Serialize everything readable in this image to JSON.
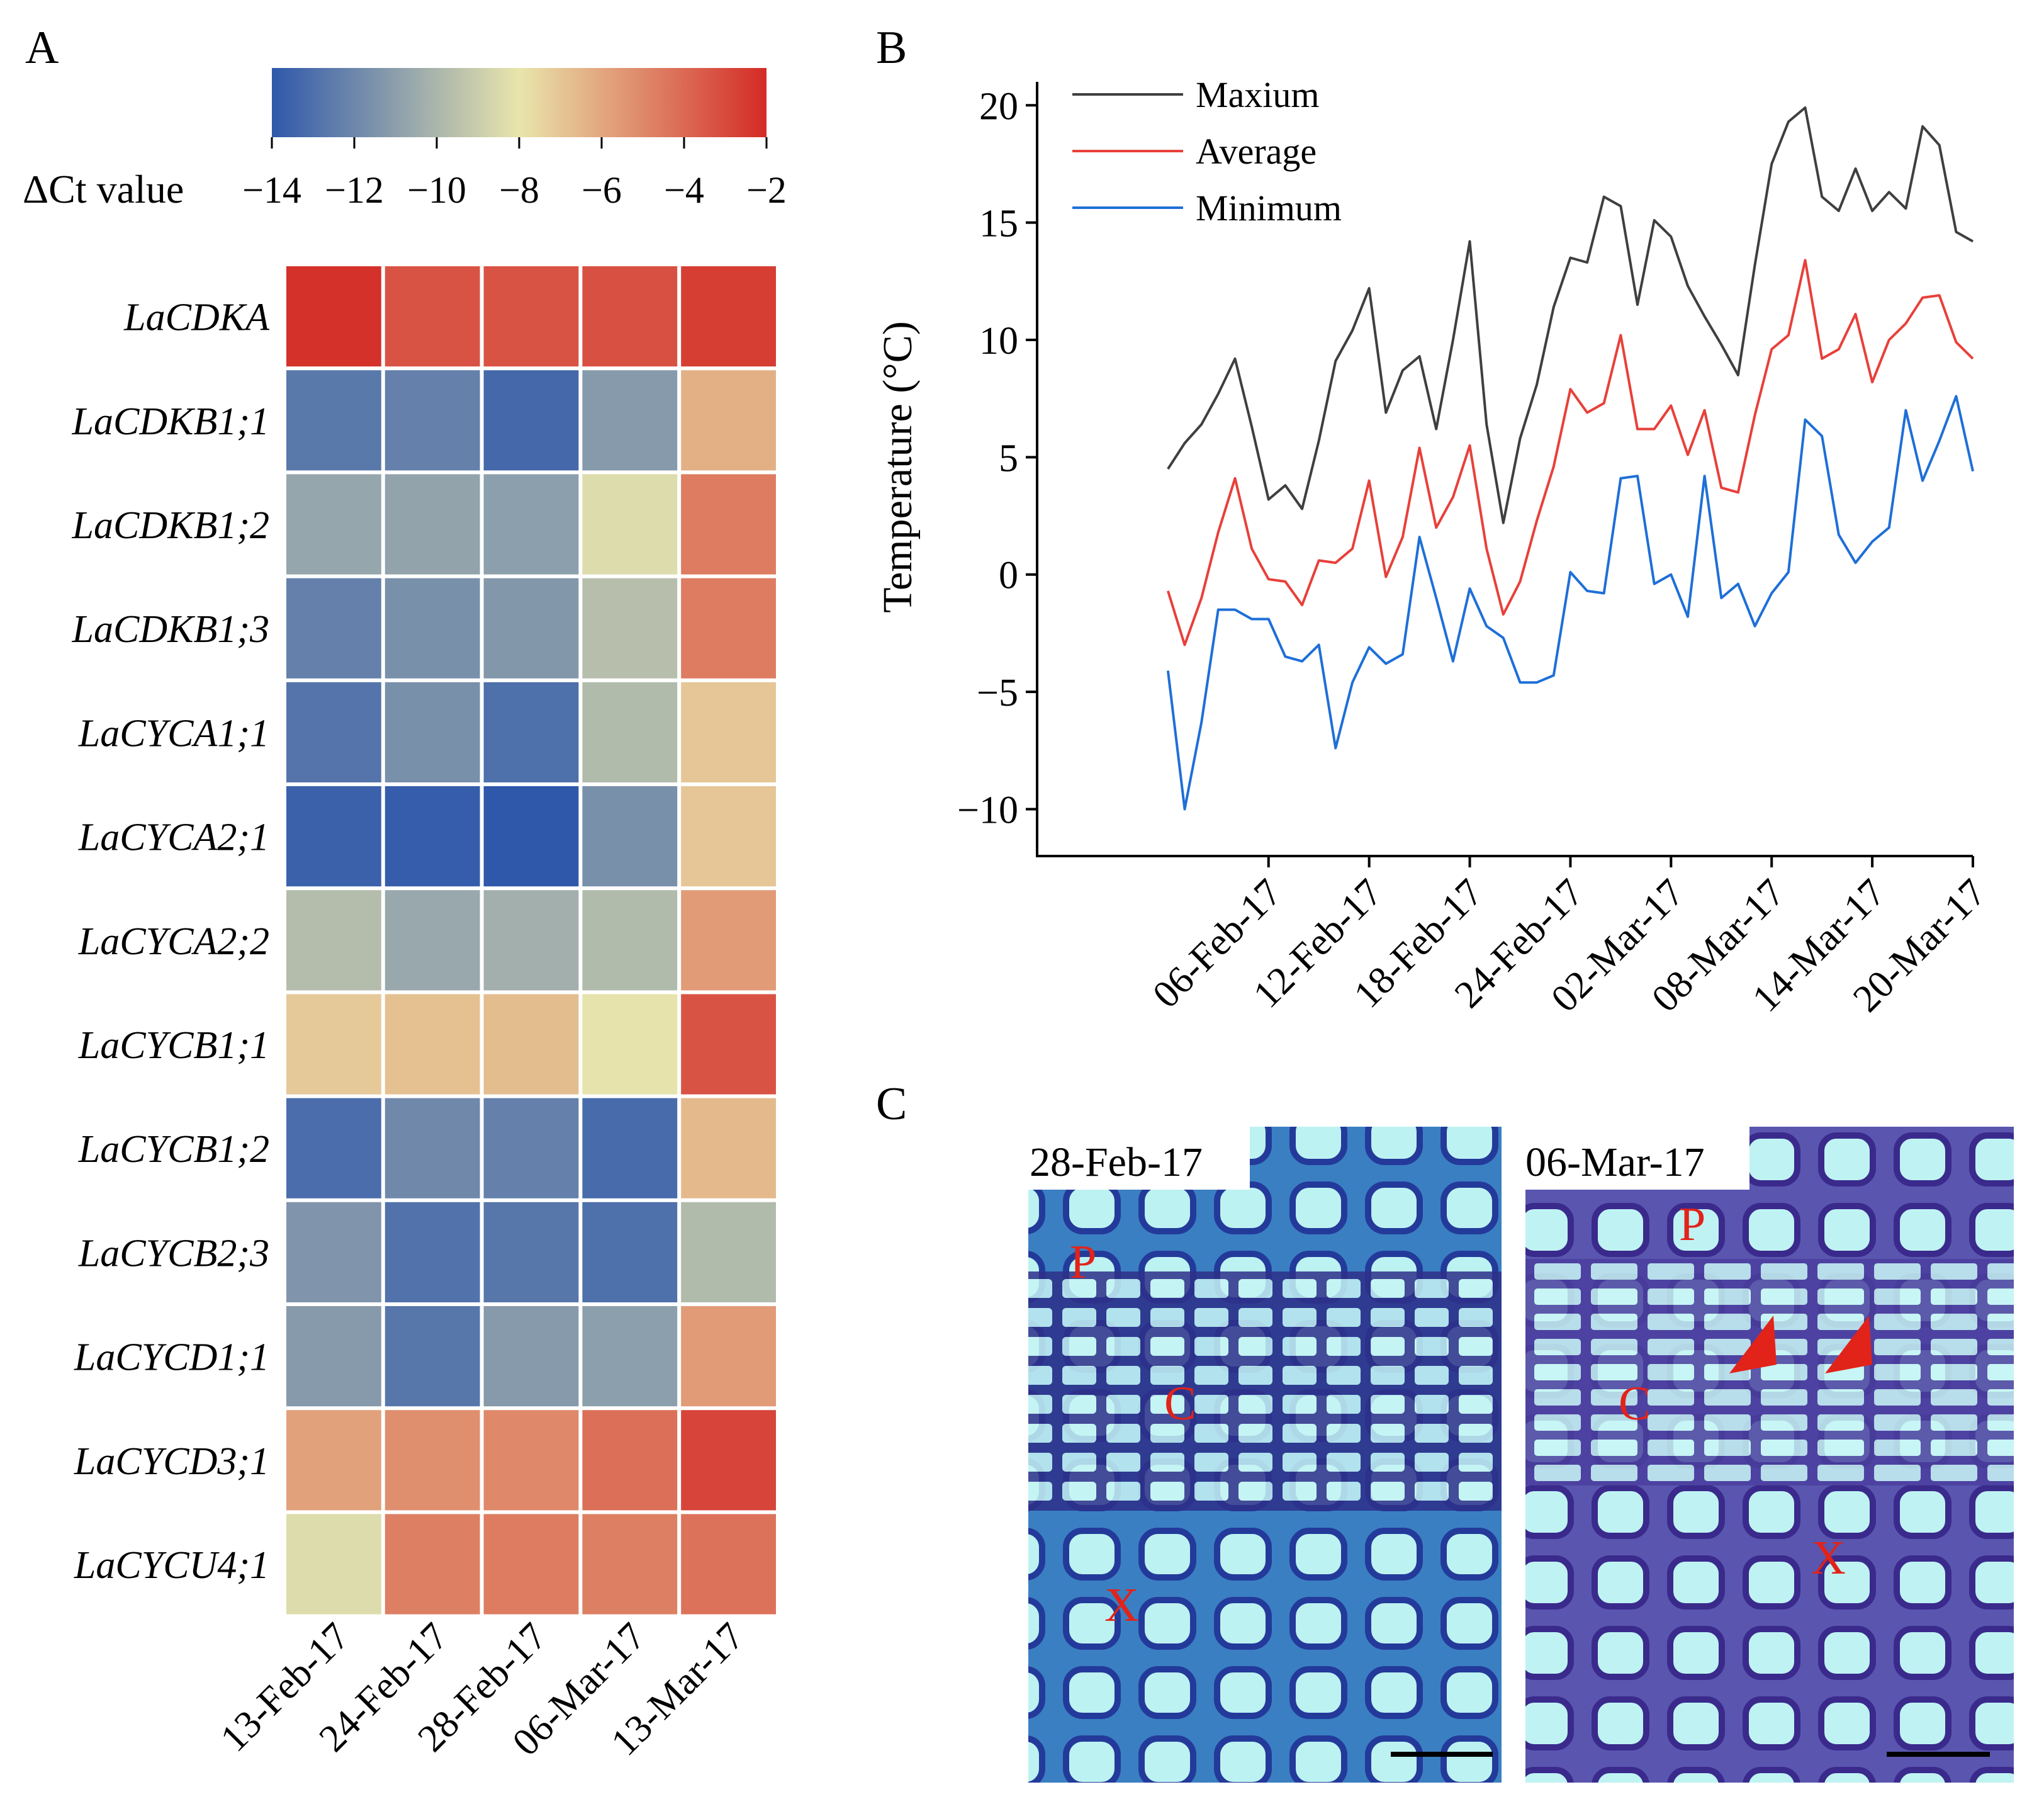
{
  "chart_data": [
    {
      "type": "heatmap",
      "panel_label": "A",
      "colorbar": {
        "title": "ΔCt value",
        "ticks": [
          "−14",
          "−12",
          "−10",
          "−8",
          "−6",
          "−4",
          "−2"
        ],
        "range": [
          -14,
          -2
        ],
        "colors": [
          "#2f58ab",
          "#e9e5ac",
          "#d42b27"
        ]
      },
      "rows": [
        "LaCDKA",
        "LaCDKB1;1",
        "LaCDKB1;2",
        "LaCDKB1;3",
        "LaCYCA1;1",
        "LaCYCA2;1",
        "LaCYCA2;2",
        "LaCYCB1;1",
        "LaCYCB1;2",
        "LaCYCB2;3",
        "LaCYCD1;1",
        "LaCYCD3;1",
        "LaCYCU4;1"
      ],
      "columns": [
        "13-Feb-17",
        "24-Feb-17",
        "28-Feb-17",
        "06-Mar-17",
        "13-Mar-17"
      ],
      "values": [
        [
          -2.2,
          -3.3,
          -3.3,
          -3.2,
          -2.6
        ],
        [
          -12.6,
          -12.3,
          -13.3,
          -11.2,
          -6.3
        ],
        [
          -10.7,
          -10.8,
          -11.0,
          -8.4,
          -4.6
        ],
        [
          -12.3,
          -11.6,
          -11.3,
          -9.6,
          -4.6
        ],
        [
          -12.8,
          -11.6,
          -13.0,
          -9.8,
          -7.0
        ],
        [
          -13.6,
          -13.8,
          -14.0,
          -11.6,
          -7.0
        ],
        [
          -9.7,
          -10.6,
          -10.3,
          -9.8,
          -5.6
        ],
        [
          -7.1,
          -6.8,
          -6.7,
          -8.1,
          -3.3
        ],
        [
          -13.1,
          -11.9,
          -12.3,
          -13.2,
          -6.6
        ],
        [
          -11.4,
          -12.9,
          -12.7,
          -13.0,
          -9.8
        ],
        [
          -11.2,
          -12.7,
          -11.2,
          -11.0,
          -5.6
        ],
        [
          -5.8,
          -5.2,
          -5.0,
          -4.2,
          -2.8
        ],
        [
          -8.4,
          -4.7,
          -4.6,
          -4.7,
          -4.3
        ]
      ]
    },
    {
      "type": "line",
      "panel_label": "B",
      "ylabel": "Temperature (°C)",
      "ylim": [
        -12,
        21
      ],
      "yticks": [
        -10,
        -5,
        0,
        5,
        10,
        15,
        20
      ],
      "x_start_day": 0,
      "x_range": [
        -7.8,
        48
      ],
      "xticks": [
        {
          "day": 6,
          "label": "06-Feb-17"
        },
        {
          "day": 12,
          "label": "12-Feb-17"
        },
        {
          "day": 18,
          "label": "18-Feb-17"
        },
        {
          "day": 24,
          "label": "24-Feb-17"
        },
        {
          "day": 30,
          "label": "02-Mar-17"
        },
        {
          "day": 36,
          "label": "08-Mar-17"
        },
        {
          "day": 42,
          "label": "14-Mar-17"
        },
        {
          "day": 48,
          "label": "20-Mar-17"
        }
      ],
      "legend_position": "top-left",
      "series": [
        {
          "name": "Maxium",
          "color": "#3f3f3f",
          "values": [
            4.5,
            5.6,
            6.4,
            7.7,
            9.2,
            6.3,
            3.2,
            3.8,
            2.8,
            5.7,
            9.1,
            10.4,
            12.2,
            6.9,
            8.7,
            9.3,
            6.2,
            10.0,
            14.2,
            6.4,
            2.2,
            5.8,
            8.1,
            11.4,
            13.5,
            13.3,
            16.1,
            15.7,
            11.5,
            15.1,
            14.4,
            12.3,
            11.0,
            9.8,
            8.5,
            13.2,
            17.5,
            19.3,
            19.9,
            16.1,
            15.5,
            17.3,
            15.5,
            16.3,
            15.6,
            19.1,
            18.3,
            14.6,
            14.2
          ]
        },
        {
          "name": "Average",
          "color": "#e8403a",
          "values": [
            -0.7,
            -3.0,
            -1.0,
            1.8,
            4.1,
            1.1,
            -0.2,
            -0.3,
            -1.3,
            0.6,
            0.5,
            1.1,
            4.0,
            -0.1,
            1.6,
            5.4,
            2.0,
            3.3,
            5.5,
            1.1,
            -1.7,
            -0.3,
            2.3,
            4.6,
            7.9,
            6.9,
            7.3,
            10.2,
            6.2,
            6.2,
            7.2,
            5.1,
            7.0,
            3.7,
            3.5,
            6.8,
            9.6,
            10.2,
            13.4,
            9.2,
            9.6,
            11.1,
            8.2,
            10.0,
            10.7,
            11.8,
            11.9,
            9.9,
            9.2
          ]
        },
        {
          "name": "Minimum",
          "color": "#1e6fd8",
          "values": [
            -4.1,
            -10.0,
            -6.3,
            -1.5,
            -1.5,
            -1.9,
            -1.9,
            -3.5,
            -3.7,
            -3.0,
            -7.4,
            -4.6,
            -3.1,
            -3.8,
            -3.4,
            1.6,
            -1.0,
            -3.7,
            -0.6,
            -2.2,
            -2.7,
            -4.6,
            -4.6,
            -4.3,
            0.1,
            -0.7,
            -0.8,
            4.1,
            4.2,
            -0.4,
            0.0,
            -1.8,
            4.2,
            -1.0,
            -0.4,
            -2.2,
            -0.8,
            0.1,
            6.6,
            5.9,
            1.7,
            0.5,
            1.4,
            2.0,
            7.0,
            4.0,
            5.7,
            7.6,
            4.4
          ]
        }
      ]
    }
  ],
  "panel_c": {
    "label": "C",
    "left": {
      "date": "28-Feb-17",
      "markers": [
        "P",
        "C",
        "X"
      ]
    },
    "right": {
      "date": "06-Mar-17",
      "markers": [
        "P",
        "C",
        "X"
      ]
    }
  }
}
